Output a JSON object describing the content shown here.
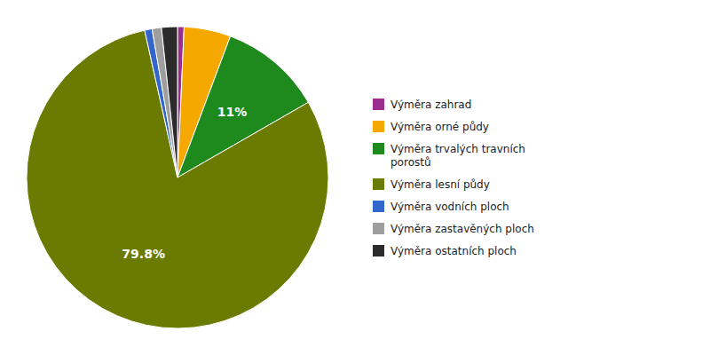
{
  "chart_data": {
    "type": "pie",
    "categories": [
      "Výměra zahrad",
      "Výměra orné půdy",
      "Výměra trvalých travních\nporostů",
      "Výměra lesní půdy",
      "Výměra vodních ploch",
      "Výměra zastavěných ploch",
      "Výměra ostatních ploch"
    ],
    "values": [
      0.7,
      5.0,
      11.0,
      79.8,
      0.8,
      1.0,
      1.7
    ],
    "value_labels": [
      null,
      null,
      "11%",
      "79.8%",
      null,
      null,
      null
    ],
    "data_labels": true,
    "colors": [
      "#9B2D8E",
      "#F5A800",
      "#1E8A1E",
      "#6B7A00",
      "#3366CC",
      "#9E9E9E",
      "#2B2B2B"
    ],
    "legend": "right"
  }
}
